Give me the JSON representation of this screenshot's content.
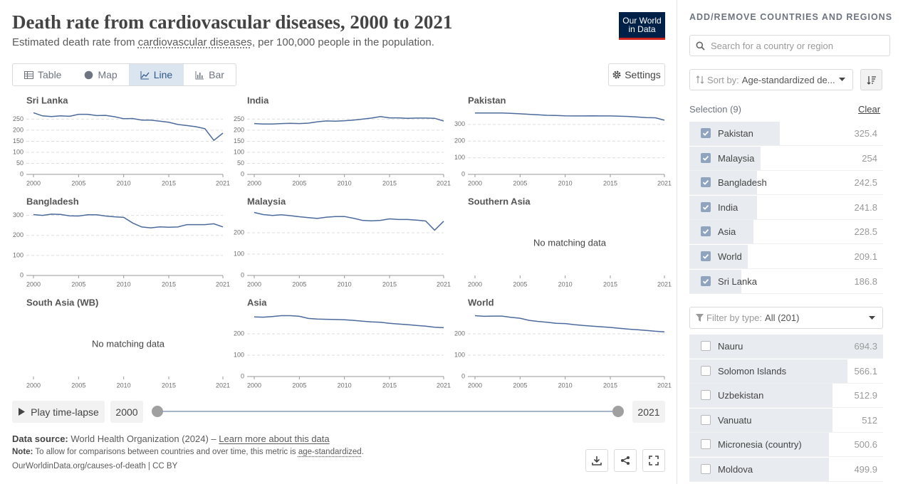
{
  "header": {
    "title": "Death rate from cardiovascular diseases, 2000 to 2021",
    "subtitle": [
      "Estimated death rate from ",
      "cardiovascular diseases",
      ", per 100,000 people in the population."
    ],
    "logo": [
      "Our World",
      "in Data"
    ]
  },
  "tabs": [
    "Table",
    "Map",
    "Line",
    "Bar"
  ],
  "active_tab": "Line",
  "settings_button": "Settings",
  "chart_data": [
    {
      "type": "line",
      "title": "Sri Lanka",
      "color": "#4c6a9c",
      "x": [
        2000,
        2001,
        2002,
        2003,
        2004,
        2005,
        2006,
        2007,
        2008,
        2009,
        2010,
        2011,
        2012,
        2013,
        2014,
        2015,
        2016,
        2017,
        2018,
        2019,
        2020,
        2021
      ],
      "values": [
        279,
        265,
        262,
        265,
        263,
        272,
        272,
        266,
        267,
        261,
        252,
        253,
        246,
        246,
        241,
        236,
        226,
        221,
        216,
        207,
        154,
        186.8
      ],
      "xlim": [
        2000,
        2021
      ],
      "xticks": [
        2000,
        2005,
        2010,
        2015,
        2021
      ],
      "ylim": [
        0,
        290
      ],
      "yticks": [
        0,
        50,
        100,
        150,
        200,
        250
      ],
      "grid": true
    },
    {
      "type": "line",
      "title": "India",
      "color": "#4c6a9c",
      "x": [
        2000,
        2001,
        2002,
        2003,
        2004,
        2005,
        2006,
        2007,
        2008,
        2009,
        2010,
        2011,
        2012,
        2013,
        2014,
        2015,
        2016,
        2017,
        2018,
        2019,
        2020,
        2021
      ],
      "values": [
        230,
        228,
        228,
        230,
        231,
        230,
        232,
        238,
        242,
        241,
        243,
        246,
        250,
        255,
        262,
        256,
        256,
        254,
        255,
        255,
        254,
        241.8
      ],
      "xlim": [
        2000,
        2021
      ],
      "xticks": [
        2000,
        2005,
        2010,
        2015,
        2021
      ],
      "ylim": [
        0,
        290
      ],
      "yticks": [
        0,
        50,
        100,
        150,
        200,
        250
      ],
      "grid": true
    },
    {
      "type": "line",
      "title": "Pakistan",
      "color": "#4c6a9c",
      "x": [
        2000,
        2001,
        2002,
        2003,
        2004,
        2005,
        2006,
        2007,
        2008,
        2009,
        2010,
        2011,
        2012,
        2013,
        2014,
        2015,
        2016,
        2017,
        2018,
        2019,
        2020,
        2021
      ],
      "values": [
        369,
        369,
        369,
        369,
        367,
        364,
        361,
        358,
        355,
        354,
        352,
        351,
        351,
        352,
        351,
        351,
        350,
        348,
        345,
        341,
        340,
        325.4
      ],
      "xlim": [
        2000,
        2021
      ],
      "xticks": [
        2000,
        2005,
        2010,
        2015,
        2021
      ],
      "ylim": [
        0,
        385
      ],
      "yticks": [
        0,
        100,
        200,
        300
      ],
      "grid": true
    },
    {
      "type": "line",
      "title": "Bangladesh",
      "color": "#4c6a9c",
      "x": [
        2000,
        2001,
        2002,
        2003,
        2004,
        2005,
        2006,
        2007,
        2008,
        2009,
        2010,
        2011,
        2012,
        2013,
        2014,
        2015,
        2016,
        2017,
        2018,
        2019,
        2020,
        2021
      ],
      "values": [
        304,
        300,
        306,
        305,
        298,
        297,
        303,
        303,
        297,
        293,
        290,
        262,
        242,
        238,
        243,
        241,
        242,
        254,
        254,
        254,
        258,
        242.5
      ],
      "xlim": [
        2000,
        2021
      ],
      "xticks": [
        2000,
        2005,
        2010,
        2015,
        2021
      ],
      "ylim": [
        0,
        320
      ],
      "yticks": [
        0,
        100,
        200,
        300
      ],
      "grid": true
    },
    {
      "type": "line",
      "title": "Malaysia",
      "color": "#4c6a9c",
      "x": [
        2000,
        2001,
        2002,
        2003,
        2004,
        2005,
        2006,
        2007,
        2008,
        2009,
        2010,
        2011,
        2012,
        2013,
        2014,
        2015,
        2016,
        2017,
        2018,
        2019,
        2020,
        2021
      ],
      "values": [
        295,
        285,
        281,
        284,
        280,
        275,
        271,
        267,
        273,
        276,
        276,
        268,
        258,
        256,
        258,
        265,
        262,
        262,
        259,
        255,
        212,
        254
      ],
      "xlim": [
        2000,
        2021
      ],
      "xticks": [
        2000,
        2005,
        2010,
        2015,
        2021
      ],
      "ylim": [
        0,
        300
      ],
      "yticks": [
        0,
        100,
        200
      ],
      "grid": true
    },
    {
      "type": "line",
      "title": "Southern Asia",
      "annotation": "No matching data",
      "xlim": [
        2000,
        2021
      ],
      "xticks": [
        2000,
        2005,
        2010,
        2015,
        2021
      ]
    },
    {
      "type": "line",
      "title": "South Asia (WB)",
      "annotation": "No matching data",
      "xlim": [
        2000,
        2021
      ],
      "xticks": [
        2000,
        2005,
        2010,
        2015,
        2021
      ]
    },
    {
      "type": "line",
      "title": "Asia",
      "color": "#4c6a9c",
      "x": [
        2000,
        2001,
        2002,
        2003,
        2004,
        2005,
        2006,
        2007,
        2008,
        2009,
        2010,
        2011,
        2012,
        2013,
        2014,
        2015,
        2016,
        2017,
        2018,
        2019,
        2020,
        2021
      ],
      "values": [
        279,
        278,
        281,
        285,
        285,
        282,
        272,
        269,
        268,
        267,
        266,
        263,
        259,
        256,
        254,
        249,
        246,
        243,
        239,
        236,
        231,
        228.5
      ],
      "xlim": [
        2000,
        2021
      ],
      "xticks": [
        2000,
        2005,
        2010,
        2015,
        2021
      ],
      "ylim": [
        0,
        300
      ],
      "yticks": [
        0,
        100,
        200
      ],
      "grid": true
    },
    {
      "type": "line",
      "title": "World",
      "color": "#4c6a9c",
      "x": [
        2000,
        2001,
        2002,
        2003,
        2004,
        2005,
        2006,
        2007,
        2008,
        2009,
        2010,
        2011,
        2012,
        2013,
        2014,
        2015,
        2016,
        2017,
        2018,
        2019,
        2020,
        2021
      ],
      "values": [
        285,
        282,
        283,
        283,
        277,
        273,
        263,
        258,
        254,
        249,
        248,
        243,
        239,
        236,
        233,
        230,
        226,
        222,
        219,
        216,
        212,
        209.1
      ],
      "xlim": [
        2000,
        2021
      ],
      "xticks": [
        2000,
        2005,
        2010,
        2015,
        2021
      ],
      "ylim": [
        0,
        300
      ],
      "yticks": [
        0,
        100,
        200
      ],
      "grid": true
    }
  ],
  "timeline": {
    "play": "Play time-lapse",
    "start": 2000,
    "end": 2021
  },
  "footer": {
    "source_label": "Data source:",
    "source": "World Health Organization (2024) – ",
    "source_link": "Learn more about this data",
    "note_label": "Note:",
    "note": "To allow for comparisons between countries and over time, this metric is ",
    "note_link": "age-standardized",
    "note_end": ".",
    "url": "OurWorldinData.org/causes-of-death | CC BY"
  },
  "sidebar": {
    "heading": "ADD/REMOVE COUNTRIES AND REGIONS",
    "search_placeholder": "Search for a country or region",
    "sort_label": "Sort by:",
    "sort_value": "Age-standardized de...",
    "selection_label": "Selection (9)",
    "clear": "Clear",
    "selected": [
      {
        "name": "Pakistan",
        "value": 325.4
      },
      {
        "name": "Malaysia",
        "value": 254
      },
      {
        "name": "Bangladesh",
        "value": 242.5
      },
      {
        "name": "India",
        "value": 241.8
      },
      {
        "name": "Asia",
        "value": 228.5
      },
      {
        "name": "World",
        "value": 209.1
      },
      {
        "name": "Sri Lanka",
        "value": 186.8
      }
    ],
    "filter_label": "Filter by type:",
    "filter_value": "All (201)",
    "entities": [
      {
        "name": "Nauru",
        "value": 694.3
      },
      {
        "name": "Solomon Islands",
        "value": 566.1
      },
      {
        "name": "Uzbekistan",
        "value": 512.9
      },
      {
        "name": "Vanuatu",
        "value": 512
      },
      {
        "name": "Micronesia (country)",
        "value": 500.6
      },
      {
        "name": "Moldova",
        "value": 499.9
      }
    ]
  }
}
